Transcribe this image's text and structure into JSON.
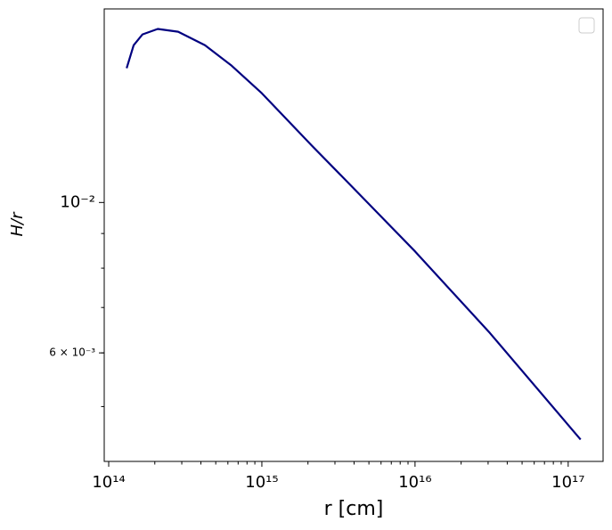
{
  "chart_data": {
    "type": "line",
    "xlabel": "r [cm]",
    "ylabel": "H/r",
    "x": [
      131000000000000.0,
      145500000000000.0,
      166300000000000.0,
      209000000000000.0,
      284000000000000.0,
      425000000000000.0,
      634000000000000.0,
      1000000000000000.0,
      2120000000000000.0,
      4130000000000000.0,
      1e+16,
      3.08e+16,
      1.205e+17
    ],
    "series": [
      {
        "color": "#000080",
        "values": [
          0.01578,
          0.01706,
          0.0177,
          0.01803,
          0.01786,
          0.01706,
          0.01592,
          0.01449,
          0.01213,
          0.0104,
          0.00847,
          0.00642,
          0.00447
        ]
      }
    ],
    "xscale": "log",
    "yscale": "log",
    "xlim": [
      93500000000000.0,
      1.69e+17
    ],
    "ylim": [
      0.00415,
      0.0193
    ],
    "xticks": [
      {
        "value": 100000000000000.0,
        "label": "10¹⁴"
      },
      {
        "value": 1000000000000000.0,
        "label": "10¹⁵"
      },
      {
        "value": 1e+16,
        "label": "10¹⁶"
      },
      {
        "value": 1e+17,
        "label": "10¹⁷"
      }
    ],
    "yticks": [
      {
        "value": 0.01,
        "label": "10⁻²"
      },
      {
        "value": 0.006,
        "label": "6 × 10⁻³"
      }
    ],
    "minor_ticks": true,
    "grid": false
  }
}
